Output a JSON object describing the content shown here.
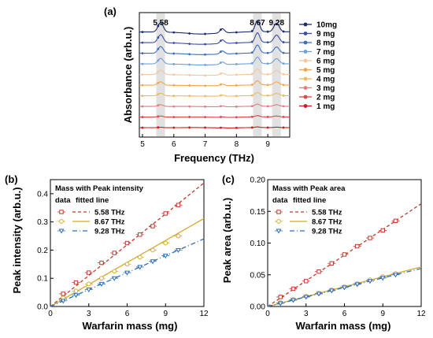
{
  "chart_data": [
    {
      "type": "line",
      "panel": "(a)",
      "xlabel": "Frequency (THz)",
      "ylabel": "Absorbance (arb.u.)",
      "xlim": [
        4.9,
        9.7
      ],
      "xticks": [
        "5",
        "6",
        "7",
        "8",
        "9"
      ],
      "highlight_bands": [
        {
          "center": 5.58,
          "label": "5.58"
        },
        {
          "center": 8.67,
          "label": "8.67"
        },
        {
          "center": 9.28,
          "label": "9.28"
        }
      ],
      "legend_placement": "right",
      "series": [
        {
          "name": "10mg",
          "color": "#1c2b6b"
        },
        {
          "name": "9 mg",
          "color": "#3b4ea6"
        },
        {
          "name": "8 mg",
          "color": "#3c6fc0"
        },
        {
          "name": "7 mg",
          "color": "#6f9fd8"
        },
        {
          "name": "6 mg",
          "color": "#f2c7a0"
        },
        {
          "name": "5 mg",
          "color": "#f2a64a"
        },
        {
          "name": "4 mg",
          "color": "#f0b95a"
        },
        {
          "name": "3 mg",
          "color": "#e87a7a"
        },
        {
          "name": "2 mg",
          "color": "#e04545"
        },
        {
          "name": "1 mg",
          "color": "#c81e1e"
        }
      ]
    },
    {
      "type": "scatter",
      "panel": "(b)",
      "title": "Mass with Peak intensity",
      "xlabel": "Warfarin mass (mg)",
      "ylabel": "Peak intensity (arb.u.)",
      "xlim": [
        0,
        12
      ],
      "ylim": [
        0,
        0.45
      ],
      "xticks": [
        "0",
        "3",
        "6",
        "9",
        "12"
      ],
      "yticks": [
        "0.0",
        "0.1",
        "0.2",
        "0.3",
        "0.4"
      ],
      "legend_header": [
        "data",
        "fitted line"
      ],
      "x": [
        1,
        2,
        3,
        4,
        5,
        6,
        7,
        8,
        9,
        10
      ],
      "series": [
        {
          "name": "5.58 THz",
          "color": "#c0392b",
          "dash": "4,3",
          "values": [
            0.045,
            0.085,
            0.12,
            0.155,
            0.19,
            0.225,
            0.255,
            0.285,
            0.33,
            0.36
          ],
          "fit": [
            0.0,
            0.0365
          ]
        },
        {
          "name": "8.67 THz",
          "color": "#d4ac2b",
          "dash": "",
          "values": [
            0.03,
            0.055,
            0.08,
            0.1,
            0.125,
            0.15,
            0.175,
            0.2,
            0.225,
            0.25
          ],
          "fit": [
            0.0,
            0.026
          ]
        },
        {
          "name": "9.28 THz",
          "color": "#2c6fbb",
          "dash": "6,3,1,3",
          "values": [
            0.02,
            0.04,
            0.06,
            0.08,
            0.1,
            0.12,
            0.14,
            0.16,
            0.18,
            0.2
          ],
          "fit": [
            0.0,
            0.02
          ]
        }
      ]
    },
    {
      "type": "scatter",
      "panel": "(c)",
      "title": "Mass with Peak area",
      "xlabel": "Warfarin mass (mg)",
      "ylabel": "Peak area (arb.u.)",
      "xlim": [
        0,
        12
      ],
      "ylim": [
        0,
        0.2
      ],
      "xticks": [
        "0",
        "3",
        "6",
        "9",
        "12"
      ],
      "yticks": [
        "0.00",
        "0.05",
        "0.10",
        "0.15",
        "0.20"
      ],
      "legend_header": [
        "data",
        "fitted line"
      ],
      "x": [
        1,
        2,
        3,
        4,
        5,
        6,
        7,
        8,
        9,
        10
      ],
      "series": [
        {
          "name": "5.58 THz",
          "color": "#c0392b",
          "dash": "4,3",
          "values": [
            0.015,
            0.028,
            0.04,
            0.055,
            0.068,
            0.082,
            0.095,
            0.108,
            0.12,
            0.135
          ],
          "fit": [
            0.0,
            0.0135
          ]
        },
        {
          "name": "8.67 THz",
          "color": "#d4ac2b",
          "dash": "",
          "values": [
            0.006,
            0.011,
            0.016,
            0.021,
            0.026,
            0.031,
            0.036,
            0.042,
            0.047,
            0.052
          ],
          "fit": [
            0.0,
            0.0052
          ]
        },
        {
          "name": "9.28 THz",
          "color": "#2c6fbb",
          "dash": "6,3,1,3",
          "values": [
            0.005,
            0.01,
            0.015,
            0.02,
            0.025,
            0.03,
            0.035,
            0.04,
            0.045,
            0.05
          ],
          "fit": [
            0.0,
            0.005
          ]
        }
      ]
    }
  ]
}
